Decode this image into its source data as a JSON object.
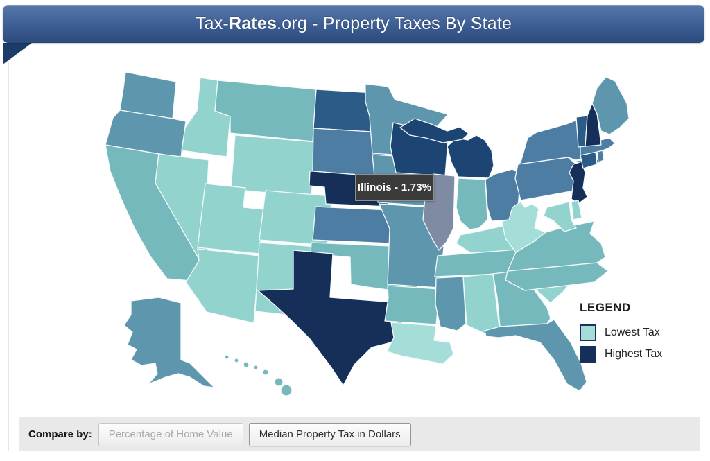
{
  "header": {
    "title_prefix": "Tax-",
    "title_brand": "Rates",
    "title_suffix": ".org - Property Taxes By State"
  },
  "tooltip": {
    "state": "Illinois",
    "value": "1.73%",
    "text": "Illinois - 1.73%"
  },
  "legend": {
    "title": "LEGEND",
    "items": [
      {
        "label": "Lowest Tax",
        "color": "#a5ded8"
      },
      {
        "label": "Highest Tax",
        "color": "#152f59"
      }
    ]
  },
  "compare_bar": {
    "label": "Compare by:",
    "buttons": [
      {
        "label": "Percentage of Home Value",
        "state": "disabled"
      },
      {
        "label": "Median Property Tax in Dollars",
        "state": "enabled"
      }
    ]
  },
  "map": {
    "hovered_state": "Illinois",
    "hovered_value": "1.73%",
    "palette": {
      "1": "#a5ded8",
      "2": "#92d3cd",
      "3": "#76b9bd",
      "4": "#5e96ad",
      "5": "#4d7da3",
      "6": "#2d5b87",
      "7": "#1d4574",
      "8": "#152f59",
      "hover": "#7e8ba3"
    },
    "states": [
      {
        "id": "WA",
        "name": "Washington",
        "level": "4"
      },
      {
        "id": "OR",
        "name": "Oregon",
        "level": "4"
      },
      {
        "id": "CA",
        "name": "California",
        "level": "3"
      },
      {
        "id": "NV",
        "name": "Nevada",
        "level": "2"
      },
      {
        "id": "ID",
        "name": "Idaho",
        "level": "2"
      },
      {
        "id": "MT",
        "name": "Montana",
        "level": "3"
      },
      {
        "id": "WY",
        "name": "Wyoming",
        "level": "2"
      },
      {
        "id": "UT",
        "name": "Utah",
        "level": "2"
      },
      {
        "id": "CO",
        "name": "Colorado",
        "level": "2"
      },
      {
        "id": "AZ",
        "name": "Arizona",
        "level": "2"
      },
      {
        "id": "NM",
        "name": "New Mexico",
        "level": "2"
      },
      {
        "id": "ND",
        "name": "North Dakota",
        "level": "6"
      },
      {
        "id": "SD",
        "name": "South Dakota",
        "level": "5"
      },
      {
        "id": "NE",
        "name": "Nebraska",
        "level": "8"
      },
      {
        "id": "KS",
        "name": "Kansas",
        "level": "5"
      },
      {
        "id": "OK",
        "name": "Oklahoma",
        "level": "3"
      },
      {
        "id": "TX",
        "name": "Texas",
        "level": "8"
      },
      {
        "id": "MN",
        "name": "Minnesota",
        "level": "4"
      },
      {
        "id": "IA",
        "name": "Iowa",
        "level": "4"
      },
      {
        "id": "MO",
        "name": "Missouri",
        "level": "4"
      },
      {
        "id": "AR",
        "name": "Arkansas",
        "level": "3"
      },
      {
        "id": "LA",
        "name": "Louisiana",
        "level": "1"
      },
      {
        "id": "WI",
        "name": "Wisconsin",
        "level": "7"
      },
      {
        "id": "IL",
        "name": "Illinois",
        "level": "hover"
      },
      {
        "id": "MI",
        "name": "Michigan",
        "level": "7"
      },
      {
        "id": "IN",
        "name": "Indiana",
        "level": "3"
      },
      {
        "id": "OH",
        "name": "Ohio",
        "level": "5"
      },
      {
        "id": "KY",
        "name": "Kentucky",
        "level": "2"
      },
      {
        "id": "TN",
        "name": "Tennessee",
        "level": "3"
      },
      {
        "id": "MS",
        "name": "Mississippi",
        "level": "4"
      },
      {
        "id": "AL",
        "name": "Alabama",
        "level": "2"
      },
      {
        "id": "GA",
        "name": "Georgia",
        "level": "3"
      },
      {
        "id": "FL",
        "name": "Florida",
        "level": "4"
      },
      {
        "id": "SC",
        "name": "South Carolina",
        "level": "2"
      },
      {
        "id": "NC",
        "name": "North Carolina",
        "level": "3"
      },
      {
        "id": "VA",
        "name": "Virginia",
        "level": "3"
      },
      {
        "id": "WV",
        "name": "West Virginia",
        "level": "1"
      },
      {
        "id": "PA",
        "name": "Pennsylvania",
        "level": "5"
      },
      {
        "id": "NY",
        "name": "New York",
        "level": "5"
      },
      {
        "id": "NJ",
        "name": "New Jersey",
        "level": "8"
      },
      {
        "id": "DE",
        "name": "Delaware",
        "level": "2"
      },
      {
        "id": "MD",
        "name": "Maryland",
        "level": "2"
      },
      {
        "id": "CT",
        "name": "Connecticut",
        "level": "6"
      },
      {
        "id": "RI",
        "name": "Rhode Island",
        "level": "5"
      },
      {
        "id": "MA",
        "name": "Massachusetts",
        "level": "5"
      },
      {
        "id": "VT",
        "name": "Vermont",
        "level": "6"
      },
      {
        "id": "NH",
        "name": "New Hampshire",
        "level": "8"
      },
      {
        "id": "ME",
        "name": "Maine",
        "level": "4"
      },
      {
        "id": "AK",
        "name": "Alaska",
        "level": "4"
      },
      {
        "id": "HI",
        "name": "Hawaii",
        "level": "3"
      }
    ]
  }
}
